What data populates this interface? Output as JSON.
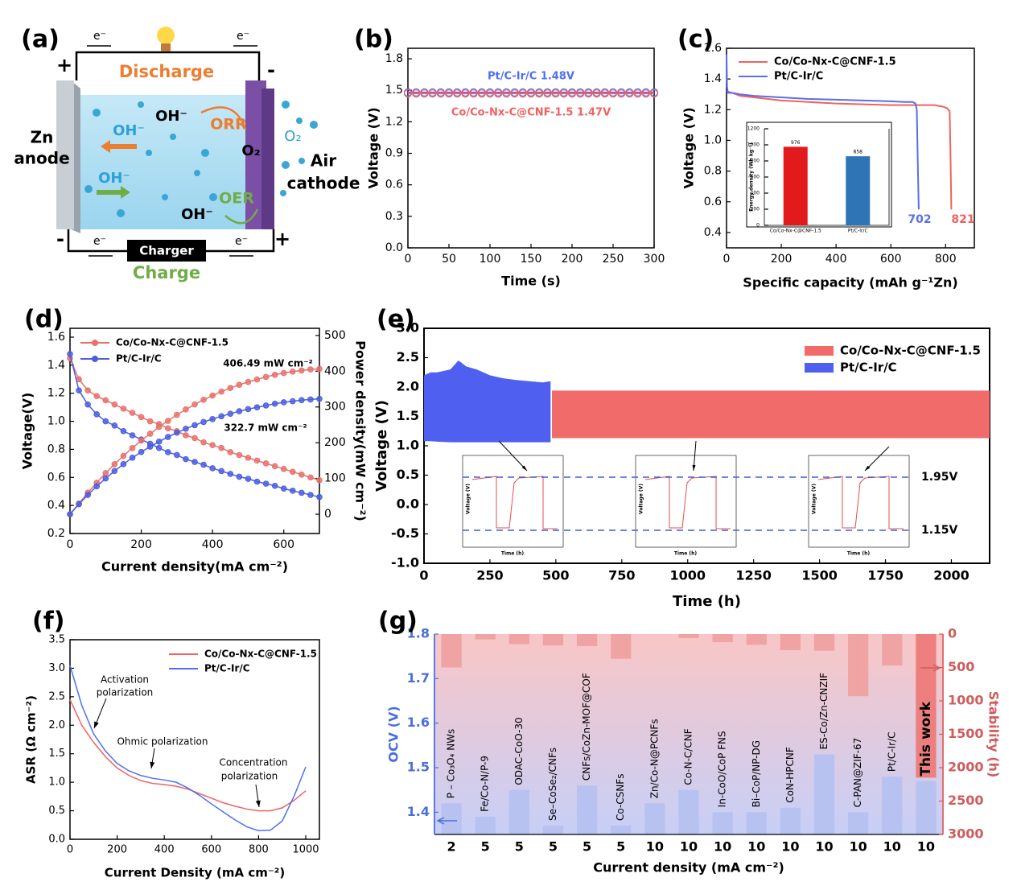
{
  "diagram": {
    "label": "(a)",
    "discharge": "Discharge",
    "charge": "Charge",
    "charger": "Charger",
    "electron": "e⁻",
    "zn_anode": [
      "Zn",
      "anode"
    ],
    "air_cathode": [
      "Air",
      "cathode"
    ],
    "hydroxide": "OH⁻",
    "oxygen": "O₂",
    "orr": "ORR",
    "oer": "OER",
    "plus": "+",
    "minus": "-"
  },
  "chart_data": [
    {
      "type": "line",
      "label": "(b)",
      "xlabel": "Time (s)",
      "ylabel": "Voltage (V)",
      "markers": true,
      "xlim": [
        0,
        300
      ],
      "xticks": [
        0,
        50,
        100,
        150,
        200,
        250,
        300
      ],
      "ylim": [
        0,
        1.9
      ],
      "yticks": [
        {
          "value": 0,
          "label": "0.0"
        },
        0.3,
        0.6,
        0.9,
        1.2,
        1.5,
        1.8
      ],
      "x": [
        0,
        10,
        20,
        30,
        40,
        50,
        60,
        70,
        80,
        90,
        100,
        110,
        120,
        130,
        140,
        150,
        160,
        170,
        180,
        190,
        200,
        210,
        220,
        230,
        240,
        250,
        260,
        270,
        280,
        290,
        300
      ],
      "series": [
        {
          "color": "#4f6ef7",
          "values": [
            1.48,
            1.48,
            1.48,
            1.48,
            1.48,
            1.48,
            1.48,
            1.48,
            1.48,
            1.48,
            1.48,
            1.48,
            1.48,
            1.48,
            1.48,
            1.48,
            1.48,
            1.48,
            1.48,
            1.48,
            1.48,
            1.48,
            1.48,
            1.48,
            1.48,
            1.48,
            1.48,
            1.48,
            1.48,
            1.48,
            1.48
          ]
        },
        {
          "color": "#f0625f",
          "values": [
            1.47,
            1.47,
            1.47,
            1.47,
            1.47,
            1.47,
            1.47,
            1.47,
            1.47,
            1.47,
            1.47,
            1.47,
            1.47,
            1.47,
            1.47,
            1.47,
            1.47,
            1.47,
            1.47,
            1.47,
            1.47,
            1.47,
            1.47,
            1.47,
            1.47,
            1.47,
            1.47,
            1.47,
            1.47,
            1.47,
            1.47
          ]
        }
      ],
      "annotations": [
        "Pt/C-Ir/C   1.48V",
        "Co/Co-Nx-C@CNF-1.5   1.47V"
      ]
    },
    {
      "type": "line",
      "label": "(c)",
      "xlabel": "Specific capacity (mAh g⁻¹Zn)",
      "ylabel": "Voltage (V)",
      "markers": false,
      "xlim": [
        0,
        905
      ],
      "xticks": [
        0,
        200,
        400,
        600,
        800
      ],
      "ylim": [
        0.3,
        1.6
      ],
      "yticks": [
        0.4,
        0.6,
        0.8,
        {
          "value": 1,
          "label": "1.0"
        },
        1.2,
        1.4,
        1.6
      ],
      "series": [
        {
          "name": "Co/Co-Nx-C@CNF-1.5",
          "color": "#f0625f",
          "x": [
            0,
            20,
            50,
            100,
            200,
            300,
            400,
            500,
            600,
            700,
            760,
            790,
            805,
            815,
            818,
            821
          ],
          "values": [
            1.32,
            1.31,
            1.29,
            1.28,
            1.26,
            1.25,
            1.24,
            1.235,
            1.23,
            1.23,
            1.23,
            1.22,
            1.21,
            1.19,
            0.9,
            0.55
          ]
        },
        {
          "name": "Pt/C-Ir/C",
          "color": "#5a6ee8",
          "x": [
            0,
            2,
            5,
            20,
            50,
            100,
            200,
            300,
            400,
            500,
            600,
            650,
            680,
            690,
            695,
            698,
            702
          ],
          "values": [
            1.56,
            1.35,
            1.31,
            1.31,
            1.3,
            1.29,
            1.28,
            1.27,
            1.265,
            1.26,
            1.255,
            1.25,
            1.25,
            1.24,
            1.2,
            0.9,
            0.55
          ]
        }
      ],
      "annotations": [
        "702",
        "821"
      ]
    },
    {
      "type": "bar",
      "ylabel": "Energy density (Wh kg⁻¹)",
      "categories": [
        "Co/Co-Nx-C@CNF-1.5",
        "Pt/C-Ir/C"
      ],
      "values": [
        976,
        858
      ],
      "colors": [
        "#e31a1c",
        "#2f75b5"
      ],
      "ylim": [
        0,
        1200
      ],
      "yticks": [
        0,
        200,
        400,
        600,
        800,
        1000,
        1200
      ]
    },
    {
      "type": "line",
      "label": "(d)",
      "xlabel": "Current density(mA cm⁻²)",
      "ylabel": "Voltage(V)",
      "y2label": "Power density(mW cm⁻²)",
      "markers": true,
      "xlim": [
        0,
        700
      ],
      "xticks": [
        0,
        200,
        400,
        600
      ],
      "ylim": [
        0.2,
        1.663
      ],
      "yticks": [
        0.2,
        0.4,
        0.6,
        0.8,
        {
          "value": 1,
          "label": "1.0"
        },
        1.2,
        1.4,
        1.6
      ],
      "y2lim": [
        -54,
        520
      ],
      "y2ticks": [
        0,
        100,
        200,
        300,
        400,
        500
      ],
      "x": [
        0,
        25,
        50,
        75,
        100,
        125,
        150,
        175,
        200,
        225,
        250,
        275,
        300,
        325,
        350,
        375,
        400,
        425,
        450,
        475,
        500,
        525,
        550,
        575,
        600,
        625,
        650,
        675,
        700
      ],
      "series": [
        {
          "name": "Co/Co-Nx-C@CNF-1.5",
          "color": "#e8706c",
          "values": [
            1.45,
            1.3,
            1.22,
            1.18,
            1.15,
            1.12,
            1.09,
            1.06,
            1.03,
            1.0,
            0.98,
            0.95,
            0.93,
            0.9,
            0.88,
            0.85,
            0.83,
            0.81,
            0.78,
            0.76,
            0.74,
            0.72,
            0.7,
            0.68,
            0.66,
            0.64,
            0.62,
            0.6,
            0.58
          ]
        },
        {
          "name": "Pt/C-Ir/C",
          "color": "#4b5ee0",
          "values": [
            1.48,
            1.22,
            1.12,
            1.05,
            1.0,
            0.97,
            0.93,
            0.9,
            0.87,
            0.84,
            0.81,
            0.78,
            0.76,
            0.73,
            0.71,
            0.69,
            0.665,
            0.645,
            0.625,
            0.605,
            0.59,
            0.57,
            0.555,
            0.54,
            0.52,
            0.505,
            0.49,
            0.475,
            0.46
          ]
        },
        {
          "color": "#e8706c",
          "axis": "y2",
          "values": [
            0,
            30,
            60,
            88,
            115,
            140,
            163,
            185,
            206,
            225,
            244,
            261,
            278,
            293,
            307,
            320,
            332,
            343,
            353,
            362,
            370,
            377,
            384,
            390,
            395,
            399,
            402,
            405,
            406.49
          ]
        },
        {
          "color": "#4b5ee0",
          "axis": "y2",
          "values": [
            0,
            28,
            54,
            78,
            100,
            121,
            140,
            158,
            174,
            189,
            203,
            216,
            228,
            239,
            249,
            258,
            266,
            274,
            281,
            288,
            294,
            299,
            304,
            309,
            313,
            316,
            319,
            321,
            322.7
          ]
        }
      ],
      "annotations": [
        "406.49 mW cm⁻²",
        "322.7 mW cm⁻²"
      ]
    },
    {
      "type": "band",
      "label": "(e)",
      "xlabel": "Time (h)",
      "ylabel": "Voltage (V)",
      "xlim": [
        0,
        2145
      ],
      "xticks": [
        0,
        250,
        500,
        750,
        1000,
        1250,
        1500,
        1750,
        2000
      ],
      "ylim": [
        -1,
        3
      ],
      "yticks": [
        {
          "value": -1,
          "label": "-1.0"
        },
        -0.5,
        {
          "value": 0,
          "label": "0.0"
        },
        0.5,
        {
          "value": 1,
          "label": "1.0"
        },
        1.5,
        {
          "value": 2,
          "label": "2.0"
        },
        2.5,
        {
          "value": 3,
          "label": "3.0"
        }
      ],
      "series": [
        {
          "name": "Co/Co-Nx-C@CNF-1.5",
          "color": "#f26b6b",
          "x": [
            485,
            1000,
            1500,
            2000,
            2145
          ],
          "upper": [
            1.94,
            1.94,
            1.94,
            1.94,
            1.94
          ],
          "lower": [
            1.13,
            1.13,
            1.13,
            1.13,
            1.13
          ]
        },
        {
          "name": "Pt/C-Ir/C",
          "color": "#4f5ff0",
          "x": [
            0,
            25,
            50,
            100,
            130,
            140,
            160,
            200,
            250,
            300,
            350,
            400,
            450,
            480
          ],
          "upper": [
            2.2,
            2.25,
            2.25,
            2.3,
            2.45,
            2.42,
            2.35,
            2.3,
            2.2,
            2.15,
            2.12,
            2.1,
            2.08,
            2.1
          ],
          "lower": [
            1.08,
            1.08,
            1.07,
            1.06,
            1.06,
            1.06,
            1.06,
            1.06,
            1.06,
            1.06,
            1.06,
            1.06,
            1.06,
            1.06
          ]
        }
      ],
      "inset_xlabel": "Time (h)",
      "inset_ylabel": "Voltage (V)",
      "inset_labels": [
        "1.95V",
        "1.15V"
      ]
    },
    {
      "type": "line",
      "label": "(f)",
      "xlabel": "Current Density (mA cm⁻²)",
      "ylabel": "ASR (Ω cm⁻²)",
      "markers": false,
      "xlim": [
        0,
        1058
      ],
      "xticks": [
        0,
        200,
        400,
        600,
        800,
        1000
      ],
      "ylim": [
        0,
        3.5
      ],
      "yticks": [
        {
          "value": 0,
          "label": "0.0"
        },
        0.5,
        {
          "value": 1,
          "label": "1.0"
        },
        1.5,
        {
          "value": 2,
          "label": "2.0"
        },
        2.5,
        {
          "value": 3,
          "label": "3.0"
        },
        3.5
      ],
      "x": [
        0,
        50,
        100,
        150,
        200,
        250,
        300,
        350,
        400,
        450,
        500,
        550,
        600,
        650,
        700,
        750,
        800,
        850,
        900,
        950,
        1000
      ],
      "series": [
        {
          "name": "Co/Co-Nx-C@CNF-1.5",
          "color": "#f0625f",
          "values": [
            2.45,
            2.0,
            1.7,
            1.45,
            1.25,
            1.12,
            1.03,
            0.98,
            0.96,
            0.93,
            0.88,
            0.8,
            0.72,
            0.64,
            0.58,
            0.53,
            0.5,
            0.5,
            0.55,
            0.68,
            0.85
          ]
        },
        {
          "name": "Pt/C-Ir/C",
          "color": "#4f6ef7",
          "values": [
            3.05,
            2.35,
            1.85,
            1.55,
            1.33,
            1.2,
            1.12,
            1.07,
            1.04,
            1.0,
            0.9,
            0.77,
            0.62,
            0.48,
            0.34,
            0.22,
            0.15,
            0.16,
            0.32,
            0.75,
            1.27
          ]
        }
      ],
      "annotations": [
        "Activation",
        "polarization",
        "Ohmic polarization",
        "Concentration",
        "polarization"
      ]
    },
    {
      "type": "bar",
      "label": "(g)",
      "xlabel": "Current density (mA cm⁻²)",
      "ylabel": "OCV (V)",
      "y2label": "Stability (h)",
      "categories": [
        "P – Co₃O₄ NWs",
        "Fe/Co-N/P-9",
        "ODAC-CoO-30",
        "Se–CoSe₂/CNFs",
        "CNFs/CoZn-MOF@COF",
        "Co-CSNFs",
        "Zn/Co-N@PCNFs",
        "Co-N-C/CNF",
        "In-CoO/CoP FNS",
        "Bi–CoP/NP-DG",
        "CoN-HPCNF",
        "ES-Co/Zn-CNZIF",
        "C-PAN@ZIF-67",
        "Pt/C-Ir/C",
        "This work"
      ],
      "current_density": [
        2,
        5,
        5,
        5,
        5,
        5,
        10,
        10,
        10,
        10,
        10,
        10,
        10,
        10,
        10
      ],
      "ylim": [
        1.35,
        1.8
      ],
      "yticks": [
        1.4,
        1.5,
        1.6,
        1.7,
        1.8
      ],
      "y2lim": [
        0,
        3000
      ],
      "y2_inverted": true,
      "y2ticks": [
        0,
        500,
        1000,
        1500,
        2000,
        2500,
        3000
      ],
      "series": [
        {
          "color": "#b8c2f0",
          "values": [
            1.42,
            1.39,
            1.45,
            1.37,
            1.46,
            1.37,
            1.42,
            1.45,
            1.4,
            1.4,
            1.41,
            1.53,
            1.4,
            1.48,
            1.47
          ]
        },
        {
          "color": "#f0a3a3",
          "axis": "y2",
          "values": [
            500,
            80,
            150,
            170,
            180,
            370,
            0,
            60,
            120,
            160,
            240,
            250,
            930,
            470,
            2150
          ]
        }
      ]
    }
  ]
}
